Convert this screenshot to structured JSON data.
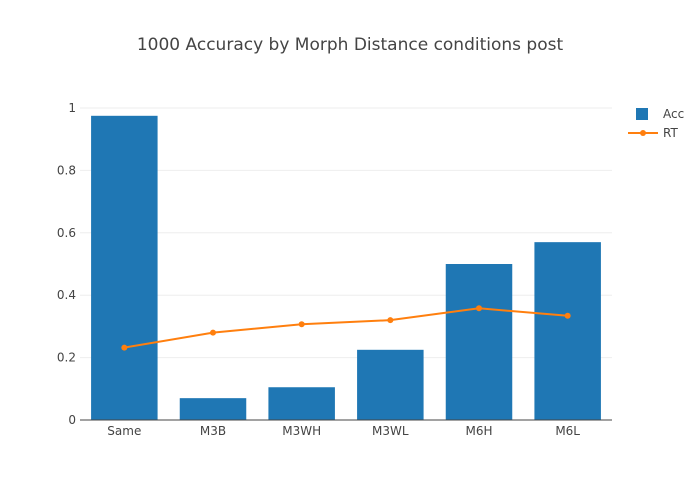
{
  "chart_data": {
    "type": "bar",
    "title": "1000 Accuracy by Morph Distance conditions post",
    "xlabel": "",
    "ylabel": "",
    "categories": [
      "Same",
      "M3B",
      "M3WH",
      "M3WL",
      "M6H",
      "M6L"
    ],
    "ylim": [
      0,
      1
    ],
    "yticks": [
      0,
      0.2,
      0.4,
      0.6,
      0.8,
      1
    ],
    "ytick_labels": [
      "0",
      "0.2",
      "0.4",
      "0.6",
      "0.8",
      "1"
    ],
    "grid": true,
    "legend_position": "top-right",
    "series": [
      {
        "name": "Acc",
        "kind": "bar",
        "color": "#1f77b4",
        "values": [
          0.975,
          0.07,
          0.105,
          0.225,
          0.5,
          0.57
        ]
      },
      {
        "name": "RT",
        "kind": "line",
        "color": "#ff7f0e",
        "values": [
          0.232,
          0.28,
          0.307,
          0.32,
          0.358,
          0.334
        ]
      }
    ]
  }
}
